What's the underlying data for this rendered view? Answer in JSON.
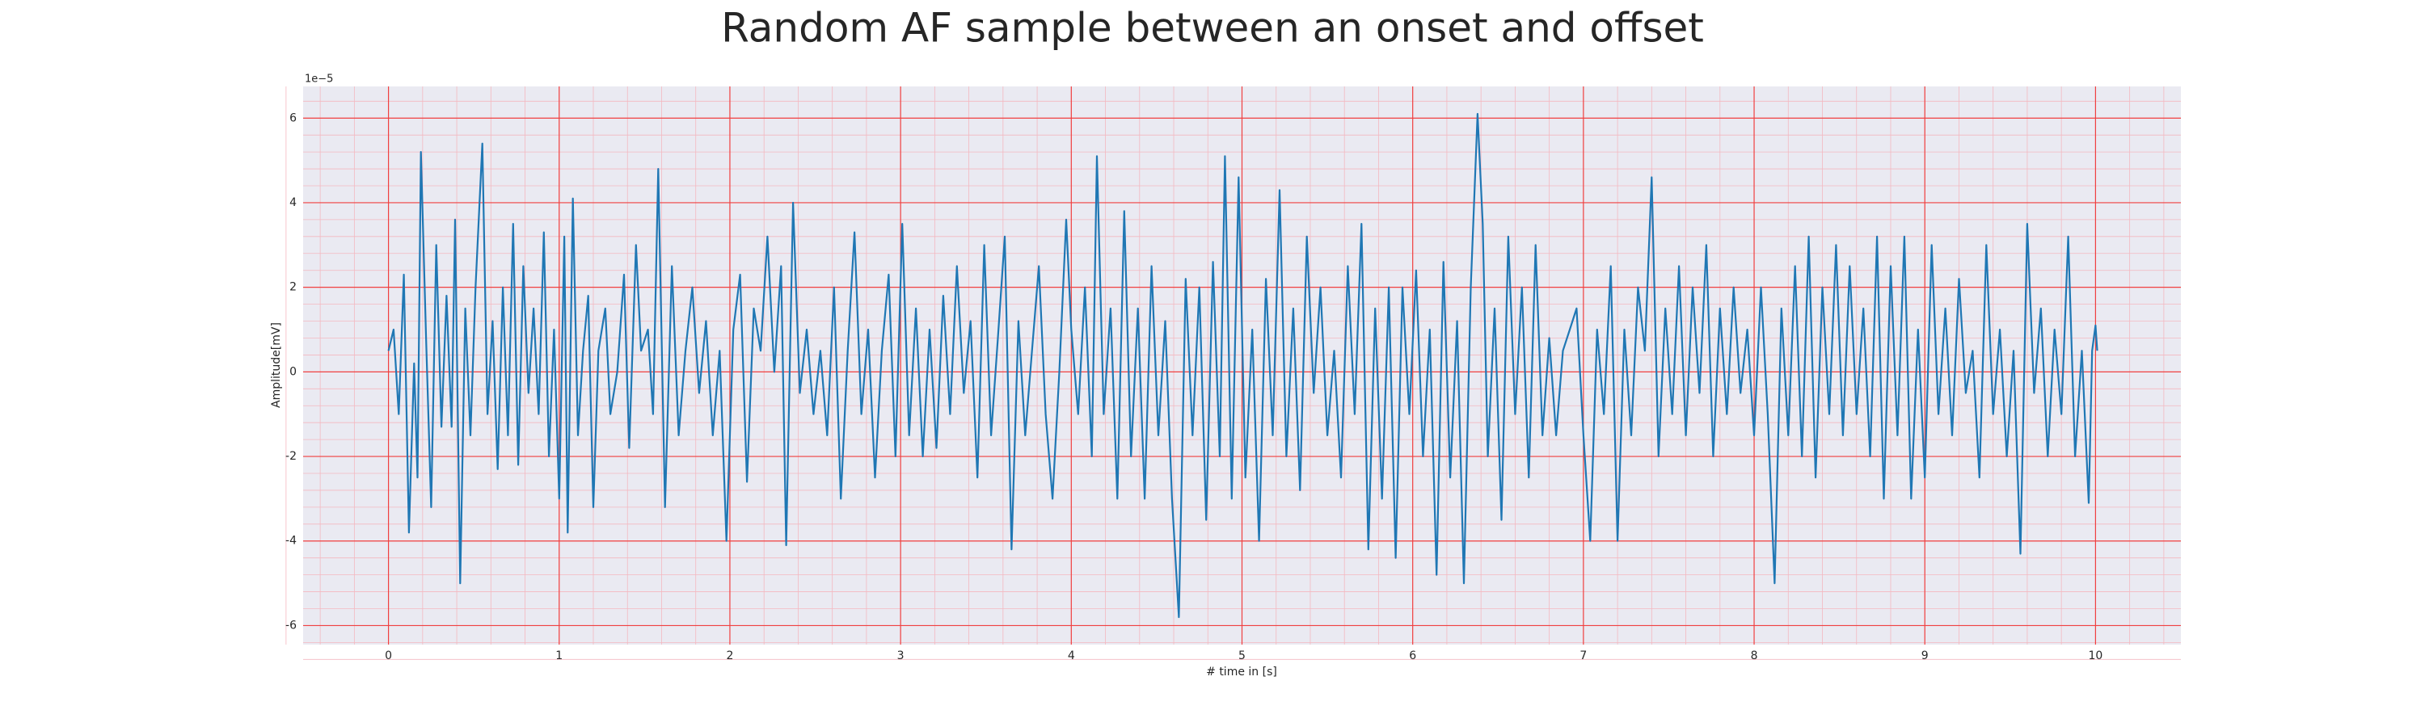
{
  "chart_data": {
    "type": "line",
    "title": "Random AF sample between an onset and offset",
    "xlabel": "# time in [s]",
    "ylabel": "Amplitude[mV]",
    "y_offset_label": "1e−5",
    "x": [
      0,
      0.03,
      0.06,
      0.09,
      0.12,
      0.15,
      0.17,
      0.19,
      0.22,
      0.25,
      0.28,
      0.31,
      0.34,
      0.37,
      0.39,
      0.42,
      0.45,
      0.48,
      0.51,
      0.55,
      0.58,
      0.61,
      0.64,
      0.67,
      0.7,
      0.73,
      0.76,
      0.79,
      0.82,
      0.85,
      0.88,
      0.91,
      0.94,
      0.97,
      1.0,
      1.03,
      1.05,
      1.08,
      1.11,
      1.14,
      1.17,
      1.2,
      1.23,
      1.27,
      1.3,
      1.34,
      1.38,
      1.41,
      1.45,
      1.48,
      1.52,
      1.55,
      1.58,
      1.62,
      1.66,
      1.7,
      1.74,
      1.78,
      1.82,
      1.86,
      1.9,
      1.94,
      1.98,
      2.02,
      2.06,
      2.1,
      2.14,
      2.18,
      2.22,
      2.26,
      2.3,
      2.33,
      2.37,
      2.41,
      2.45,
      2.49,
      2.53,
      2.57,
      2.61,
      2.65,
      2.69,
      2.73,
      2.77,
      2.81,
      2.85,
      2.89,
      2.93,
      2.97,
      3.01,
      3.05,
      3.09,
      3.13,
      3.17,
      3.21,
      3.25,
      3.29,
      3.33,
      3.37,
      3.41,
      3.45,
      3.49,
      3.53,
      3.57,
      3.61,
      3.65,
      3.69,
      3.73,
      3.77,
      3.81,
      3.85,
      3.89,
      3.93,
      3.97,
      4.0,
      4.04,
      4.08,
      4.12,
      4.15,
      4.19,
      4.23,
      4.27,
      4.31,
      4.35,
      4.39,
      4.43,
      4.47,
      4.51,
      4.55,
      4.59,
      4.63,
      4.67,
      4.71,
      4.75,
      4.79,
      4.83,
      4.87,
      4.9,
      4.94,
      4.98,
      5.02,
      5.06,
      5.1,
      5.14,
      5.18,
      5.22,
      5.26,
      5.3,
      5.34,
      5.38,
      5.42,
      5.46,
      5.5,
      5.54,
      5.58,
      5.62,
      5.66,
      5.7,
      5.74,
      5.78,
      5.82,
      5.86,
      5.9,
      5.94,
      5.98,
      6.02,
      6.06,
      6.1,
      6.14,
      6.18,
      6.22,
      6.26,
      6.3,
      6.34,
      6.38,
      6.41,
      6.44,
      6.48,
      6.52,
      6.56,
      6.6,
      6.64,
      6.68,
      6.72,
      6.76,
      6.8,
      6.84,
      6.88,
      6.92,
      6.96,
      7.0,
      7.04,
      7.08,
      7.12,
      7.16,
      7.2,
      7.24,
      7.28,
      7.32,
      7.36,
      7.4,
      7.44,
      7.48,
      7.52,
      7.56,
      7.6,
      7.64,
      7.68,
      7.72,
      7.76,
      7.8,
      7.84,
      7.88,
      7.92,
      7.96,
      8.0,
      8.04,
      8.08,
      8.12,
      8.16,
      8.2,
      8.24,
      8.28,
      8.32,
      8.36,
      8.4,
      8.44,
      8.48,
      8.52,
      8.56,
      8.6,
      8.64,
      8.68,
      8.72,
      8.76,
      8.8,
      8.84,
      8.88,
      8.92,
      8.96,
      9.0,
      9.04,
      9.08,
      9.12,
      9.16,
      9.2,
      9.24,
      9.28,
      9.32,
      9.36,
      9.4,
      9.44,
      9.48,
      9.52,
      9.56,
      9.6,
      9.64,
      9.68,
      9.72,
      9.76,
      9.8,
      9.84,
      9.88,
      9.92,
      9.96,
      9.98,
      10.0,
      10.01
    ],
    "values": [
      0.5,
      1.0,
      -1.0,
      2.3,
      -3.8,
      0.2,
      -2.5,
      5.2,
      0.8,
      -3.2,
      3.0,
      -1.3,
      1.8,
      -1.3,
      3.6,
      -5.0,
      1.5,
      -1.5,
      2.0,
      5.4,
      -1.0,
      1.2,
      -2.3,
      2.0,
      -1.5,
      3.5,
      -2.2,
      2.5,
      -0.5,
      1.5,
      -1.0,
      3.3,
      -2.0,
      1.0,
      -3.0,
      3.2,
      -3.8,
      4.1,
      -1.5,
      0.5,
      1.8,
      -3.2,
      0.5,
      1.5,
      -1.0,
      0.0,
      2.3,
      -1.8,
      3.0,
      0.5,
      1.0,
      -1.0,
      4.8,
      -3.2,
      2.5,
      -1.5,
      0.5,
      2.0,
      -0.5,
      1.2,
      -1.5,
      0.5,
      -4.0,
      1.0,
      2.3,
      -2.6,
      1.5,
      0.5,
      3.2,
      0.0,
      2.5,
      -4.1,
      4.0,
      -0.5,
      1.0,
      -1.0,
      0.5,
      -1.5,
      2.0,
      -3.0,
      0.5,
      3.3,
      -1.0,
      1.0,
      -2.5,
      0.5,
      2.3,
      -2.0,
      3.5,
      -1.5,
      1.5,
      -2.0,
      1.0,
      -1.8,
      1.8,
      -1.0,
      2.5,
      -0.5,
      1.2,
      -2.5,
      3.0,
      -1.5,
      0.8,
      3.2,
      -4.2,
      1.2,
      -1.5,
      0.5,
      2.5,
      -1.0,
      -3.0,
      0.0,
      3.6,
      1.0,
      -1.0,
      2.0,
      -2.0,
      5.1,
      -1.0,
      1.5,
      -3.0,
      3.8,
      -2.0,
      1.5,
      -3.0,
      2.5,
      -1.5,
      1.2,
      -3.0,
      -5.8,
      2.2,
      -1.5,
      2.0,
      -3.5,
      2.6,
      -2.0,
      5.1,
      -3.0,
      4.6,
      -2.5,
      1.0,
      -4.0,
      2.2,
      -1.5,
      4.3,
      -2.0,
      1.5,
      -2.8,
      3.2,
      -0.5,
      2.0,
      -1.5,
      0.5,
      -2.5,
      2.5,
      -1.0,
      3.5,
      -4.2,
      1.5,
      -3.0,
      2.0,
      -4.4,
      2.0,
      -1.0,
      2.4,
      -2.0,
      1.0,
      -4.8,
      2.6,
      -2.5,
      1.2,
      -5.0,
      2.0,
      6.1,
      3.5,
      -2.0,
      1.5,
      -3.5,
      3.2,
      -1.0,
      2.0,
      -2.5,
      3.0,
      -1.5,
      0.8,
      -1.5,
      0.5,
      1.0,
      1.5,
      -1.5,
      -4.0,
      1.0,
      -1.0,
      2.5,
      -4.0,
      1.0,
      -1.5,
      2.0,
      0.5,
      4.6,
      -2.0,
      1.5,
      -1.0,
      2.5,
      -1.5,
      2.0,
      -0.5,
      3.0,
      -2.0,
      1.5,
      -1.0,
      2.0,
      -0.5,
      1.0,
      -1.5,
      2.0,
      -1.0,
      -5.0,
      1.5,
      -1.5,
      2.5,
      -2.0,
      3.2,
      -2.5,
      2.0,
      -1.0,
      3.0,
      -1.5,
      2.5,
      -1.0,
      1.5,
      -2.0,
      3.2,
      -3.0,
      2.5,
      -1.5,
      3.2,
      -3.0,
      1.0,
      -2.5,
      3.0,
      -1.0,
      1.5,
      -1.5,
      2.2,
      -0.5,
      0.5,
      -2.5,
      3.0,
      -1.0,
      1.0,
      -2.0,
      0.5,
      -4.3,
      3.5,
      -0.5,
      1.5,
      -2.0,
      1.0,
      -1.0,
      3.2,
      -2.0,
      0.5,
      -3.1,
      0.5,
      1.1,
      0.5
    ],
    "color": "#1f77b4",
    "xlim": [
      -0.5,
      10.5
    ],
    "ylim": [
      -6.45,
      6.75
    ],
    "xticks": [
      0,
      1,
      2,
      3,
      4,
      5,
      6,
      7,
      8,
      9,
      10
    ],
    "yticks": [
      -6,
      -4,
      -2,
      0,
      2,
      4,
      6
    ],
    "grid": true
  }
}
